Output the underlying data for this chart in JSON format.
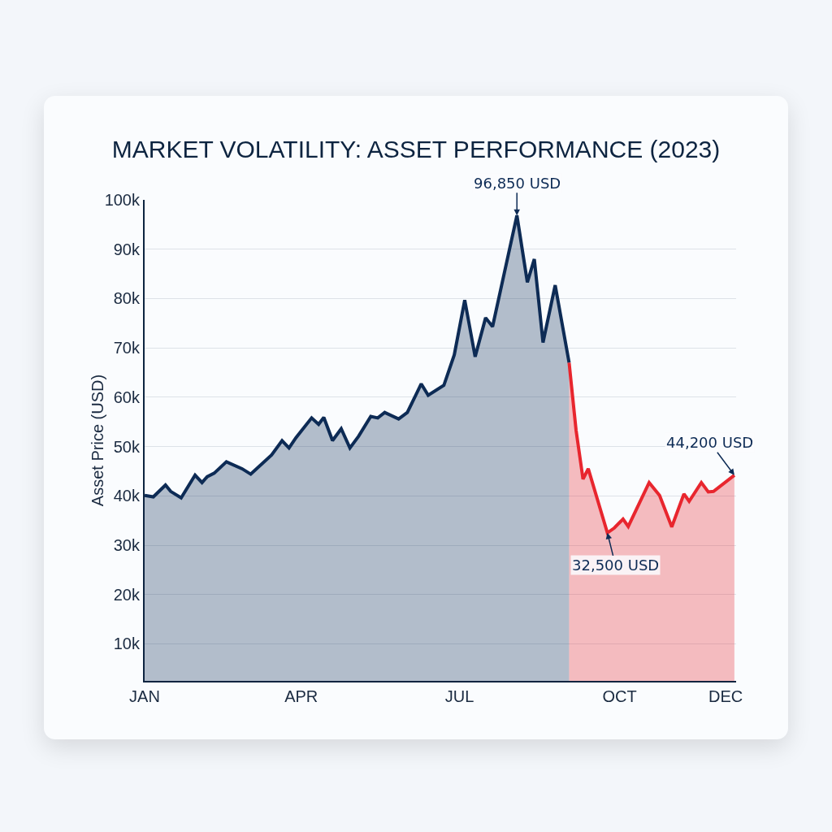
{
  "chart_data": {
    "type": "area",
    "title": "MARKET VOLATILITY: ASSET PERFORMANCE (2023)",
    "ylabel": "Asset Price (USD)",
    "xlim": [
      "2023-01-01",
      "2023-12-07"
    ],
    "xticks": [
      {
        "value": "2023-01-01",
        "label": "JAN"
      },
      {
        "value": "2023-04-01",
        "label": "APR"
      },
      {
        "value": "2023-07-01",
        "label": "JUL"
      },
      {
        "value": "2023-10-01",
        "label": "OCT"
      },
      {
        "value": "2023-12-01",
        "label": "DEC"
      }
    ],
    "ylim": [
      2500,
      100000
    ],
    "yticks": [
      {
        "value": 10000,
        "label": "10k"
      },
      {
        "value": 20000,
        "label": "20k"
      },
      {
        "value": 30000,
        "label": "30k"
      },
      {
        "value": 40000,
        "label": "40k"
      },
      {
        "value": 50000,
        "label": "50k"
      },
      {
        "value": 60000,
        "label": "60k"
      },
      {
        "value": 70000,
        "label": "70k"
      },
      {
        "value": 80000,
        "label": "80k"
      },
      {
        "value": 90000,
        "label": "90k"
      },
      {
        "value": 100000,
        "label": "100k"
      }
    ],
    "grid": "y",
    "series": [
      {
        "color": "#0d2b55",
        "x": [
          "2023-01-01",
          "2023-01-06",
          "2023-01-13",
          "2023-01-16",
          "2023-01-22",
          "2023-01-30",
          "2023-02-03",
          "2023-02-06",
          "2023-02-10",
          "2023-02-17",
          "2023-02-26",
          "2023-03-03",
          "2023-03-15",
          "2023-03-21",
          "2023-03-25",
          "2023-03-29",
          "2023-04-07",
          "2023-04-11",
          "2023-04-14",
          "2023-04-19",
          "2023-04-24",
          "2023-04-29",
          "2023-05-04",
          "2023-05-11",
          "2023-05-15",
          "2023-05-19",
          "2023-05-27",
          "2023-06-01",
          "2023-06-09",
          "2023-06-13",
          "2023-06-22",
          "2023-06-28",
          "2023-07-04",
          "2023-07-10",
          "2023-07-16",
          "2023-07-20",
          "2023-08-03",
          "2023-08-09",
          "2023-08-13",
          "2023-08-18",
          "2023-08-25",
          "2023-09-02"
        ],
        "values": [
          40100,
          39800,
          42200,
          40900,
          39600,
          44200,
          42700,
          43900,
          44600,
          46900,
          45500,
          44400,
          48300,
          51200,
          49700,
          51800,
          55800,
          54500,
          55900,
          51200,
          53600,
          49700,
          52100,
          56100,
          55800,
          56900,
          55600,
          56900,
          62700,
          60400,
          62400,
          68600,
          79700,
          68200,
          76100,
          74300,
          96850,
          83300,
          88000,
          71100,
          82700,
          67000
        ]
      },
      {
        "color": "#e8262e",
        "x": [
          "2023-09-02",
          "2023-09-06",
          "2023-09-10",
          "2023-09-13",
          "2023-09-24",
          "2023-09-28",
          "2023-10-03",
          "2023-10-06",
          "2023-10-18",
          "2023-10-24",
          "2023-10-31",
          "2023-11-07",
          "2023-11-10",
          "2023-11-17",
          "2023-11-21",
          "2023-11-24",
          "2023-12-06"
        ],
        "values": [
          67000,
          53300,
          43400,
          45500,
          32500,
          33500,
          35300,
          33800,
          42700,
          40100,
          33700,
          40400,
          38900,
          42700,
          40800,
          40900,
          44200
        ]
      }
    ],
    "annotations": [
      {
        "text": "96,850 USD",
        "x": "2023-08-03",
        "y": 96850
      },
      {
        "text": "32,500 USD",
        "x": "2023-09-24",
        "y": 32500
      },
      {
        "text": "44,200 USD",
        "x": "2023-12-06",
        "y": 44200
      }
    ]
  }
}
